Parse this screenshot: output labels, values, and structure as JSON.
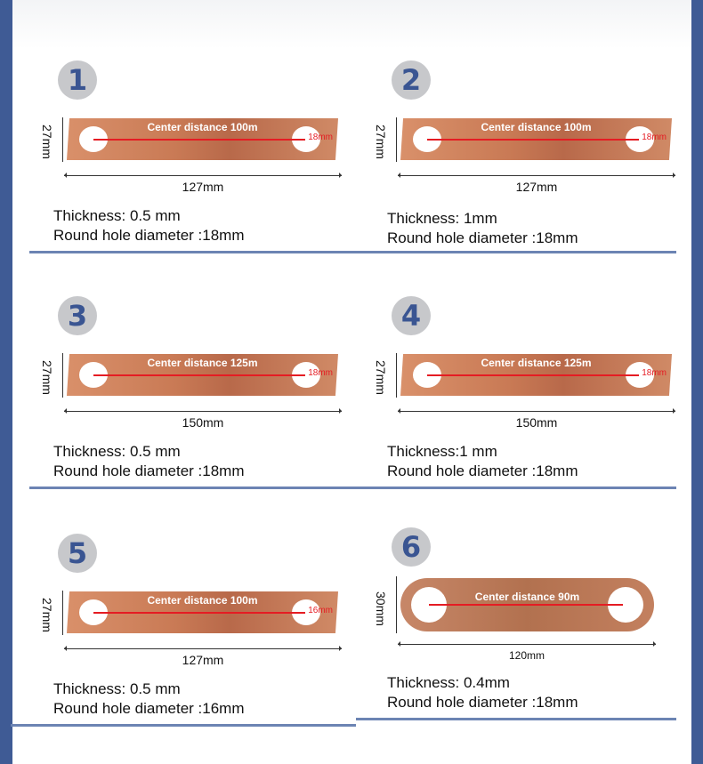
{
  "colors": {
    "side": "#3f5b95",
    "badge_bg": "#c7c8cb",
    "badge_text": "#3a5592",
    "copper": "#c97a55",
    "dimension_red": "#e51c23",
    "divider": "#6c84b3"
  },
  "products": [
    {
      "number": "1",
      "center_distance": "Center distance 100m",
      "hole_label": "18mm",
      "length": "127mm",
      "width": "27mm",
      "thickness": "Thickness: 0.5 mm",
      "hole_diameter": "Round hole diameter :18mm",
      "shape": "strip"
    },
    {
      "number": "2",
      "center_distance": "Center distance 100m",
      "hole_label": "18mm",
      "length": "127mm",
      "width": "27mm",
      "thickness": "Thickness: 1mm",
      "hole_diameter": "Round hole diameter :18mm",
      "shape": "strip"
    },
    {
      "number": "3",
      "center_distance": "Center distance 125m",
      "hole_label": "18mm",
      "length": "150mm",
      "width": "27mm",
      "thickness": "Thickness: 0.5 mm",
      "hole_diameter": "Round hole diameter :18mm",
      "shape": "strip"
    },
    {
      "number": "4",
      "center_distance": "Center distance 125m",
      "hole_label": "18mm",
      "length": "150mm",
      "width": "27mm",
      "thickness": "Thickness:1 mm",
      "hole_diameter": "Round hole diameter :18mm",
      "shape": "strip"
    },
    {
      "number": "5",
      "center_distance": "Center distance 100m",
      "hole_label": "16mm",
      "length": "127mm",
      "width": "27mm",
      "thickness": "Thickness: 0.5 mm",
      "hole_diameter": "Round hole diameter :16mm",
      "shape": "strip"
    },
    {
      "number": "6",
      "center_distance": "Center distance 90m",
      "hole_label": "",
      "length": "120mm",
      "width": "30mm",
      "thickness": "Thickness: 0.4mm",
      "hole_diameter": "Round hole diameter :18mm",
      "shape": "rounded"
    }
  ]
}
